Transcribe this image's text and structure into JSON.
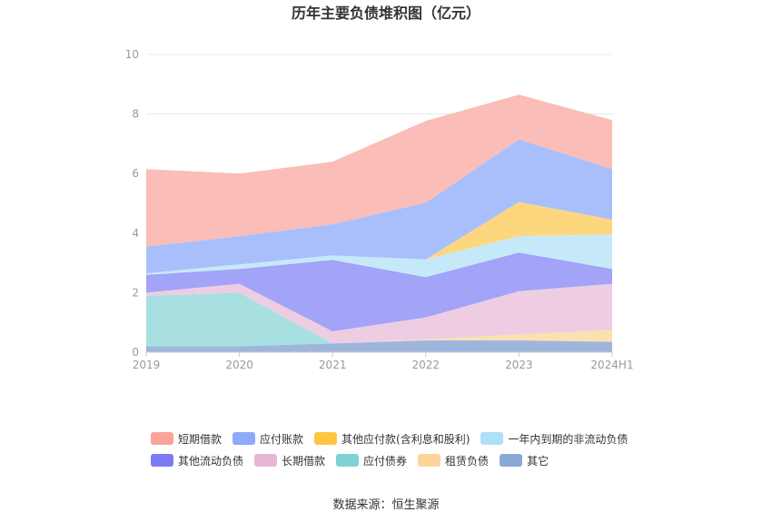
{
  "chart_data": {
    "type": "area",
    "stacked": true,
    "title": "历年主要负债堆积图（亿元）",
    "categories": [
      "2019",
      "2020",
      "2021",
      "2022",
      "2023",
      "2024H1"
    ],
    "ylim": [
      0,
      10
    ],
    "yticks": [
      "0",
      "2",
      "4",
      "6",
      "8",
      "10"
    ],
    "grid": true,
    "legend_position": "bottom",
    "series": [
      {
        "name": "其它",
        "color": "#9fb6dc",
        "values": [
          0.2,
          0.2,
          0.3,
          0.4,
          0.4,
          0.35
        ]
      },
      {
        "name": "租赁负债",
        "color": "#fde0b0",
        "values": [
          0.0,
          0.0,
          0.0,
          0.02,
          0.2,
          0.4
        ]
      },
      {
        "name": "应付债券",
        "color": "#a8e0e2",
        "values": [
          1.7,
          1.8,
          0.0,
          0.0,
          0.0,
          0.0
        ]
      },
      {
        "name": "长期借款",
        "color": "#eecde3",
        "values": [
          0.1,
          0.3,
          0.4,
          0.75,
          1.45,
          1.55
        ]
      },
      {
        "name": "其他流动负债",
        "color": "#a3a3f8",
        "values": [
          0.6,
          0.5,
          2.4,
          1.35,
          1.3,
          0.5
        ]
      },
      {
        "name": "一年内到期的非流动负债",
        "color": "#c6e9fa",
        "values": [
          0.05,
          0.15,
          0.15,
          0.6,
          0.55,
          1.15
        ]
      },
      {
        "name": "其他应付款(含利息和股利)",
        "color": "#fdd77e",
        "values": [
          0.0,
          0.0,
          0.0,
          0.0,
          1.15,
          0.5
        ]
      },
      {
        "name": "应付账款",
        "color": "#a9bffc",
        "values": [
          0.9,
          0.95,
          1.05,
          1.9,
          2.1,
          1.7
        ]
      },
      {
        "name": "短期借款",
        "color": "#fbbdb7",
        "values": [
          2.6,
          2.1,
          2.1,
          2.75,
          1.5,
          1.65
        ]
      }
    ]
  },
  "legend": {
    "rows": [
      [
        {
          "label": "短期借款",
          "color": "#f9a39a"
        },
        {
          "label": "应付账款",
          "color": "#8fa9fb"
        },
        {
          "label": "其他应付款(含利息和股利)",
          "color": "#fdc63f"
        },
        {
          "label": "一年内到期的非流动负债",
          "color": "#aee0f8"
        }
      ],
      [
        {
          "label": "其他流动负债",
          "color": "#7b7bf5"
        },
        {
          "label": "长期借款",
          "color": "#e7b6d7"
        },
        {
          "label": "应付债券",
          "color": "#7fd3d6"
        },
        {
          "label": "租赁负债",
          "color": "#fdd49a"
        },
        {
          "label": "其它",
          "color": "#8aa8d6"
        }
      ]
    ]
  },
  "source": "数据来源：恒生聚源"
}
